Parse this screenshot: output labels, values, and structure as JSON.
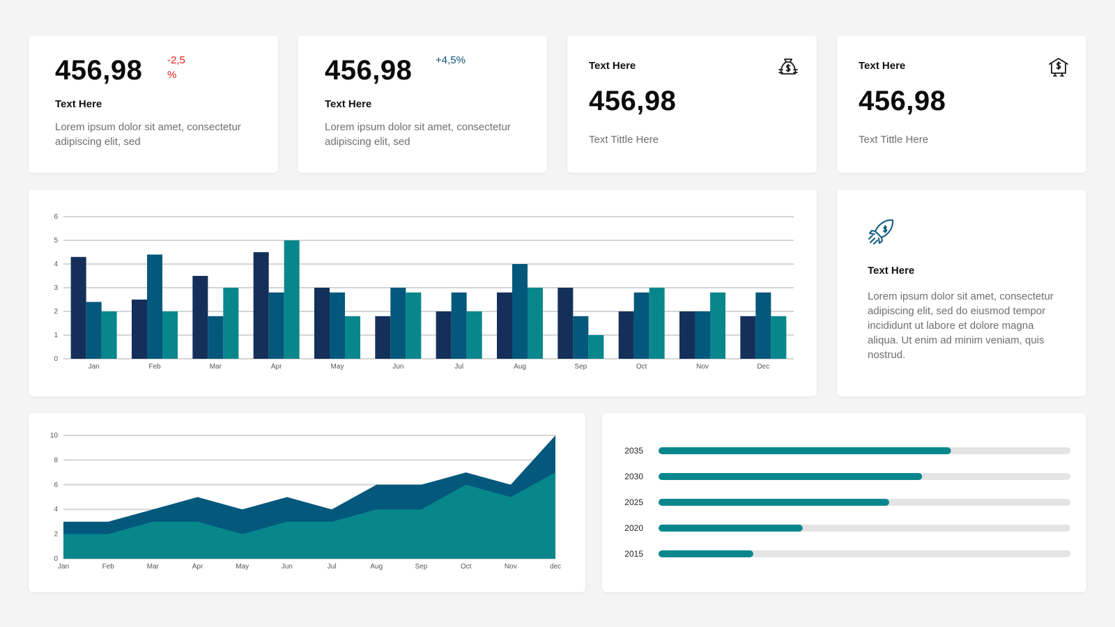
{
  "colors": {
    "navy": "#14305a",
    "blue": "#03587b",
    "teal": "#07878c",
    "negative": "#e8201a",
    "positive": "#0b4f7a",
    "track": "#e4e4e4"
  },
  "kpi_cards": [
    {
      "value": "456,98",
      "change": "-2,5 %",
      "change_color": "#e8201a",
      "title": "Text Here",
      "desc": "Lorem ipsum dolor sit amet, consectetur adipiscing elit, sed"
    },
    {
      "value": "456,98",
      "change": "+4,5%",
      "change_color": "#0b4f7a",
      "title": "Text Here",
      "desc": "Lorem ipsum dolor sit amet, consectetur adipiscing elit, sed"
    },
    {
      "title": "Text Here",
      "value": "456,98",
      "subtitle": "Text Tittle Here",
      "icon": "money-bag-icon"
    },
    {
      "title": "Text Here",
      "value": "456,98",
      "subtitle": "Text Tittle Here",
      "icon": "money-house-icon"
    }
  ],
  "info_card": {
    "icon": "money-rocket-icon",
    "title": "Text Here",
    "desc": "Lorem ipsum dolor sit amet, consectetur adipiscing elit, sed do eiusmod tempor incididunt ut labore et dolore magna aliqua. Ut enim ad minim veniam, quis nostrud."
  },
  "chart_data": [
    {
      "type": "bar",
      "categories": [
        "Jan",
        "Feb",
        "Mar",
        "Apr",
        "May",
        "Jun",
        "Jul",
        "Aug",
        "Sep",
        "Oct",
        "Nov",
        "Dec"
      ],
      "series": [
        {
          "values": [
            4.3,
            2.5,
            3.5,
            4.5,
            3,
            1.8,
            2,
            2.8,
            3,
            2,
            2,
            1.8
          ],
          "color": "#14305a"
        },
        {
          "values": [
            2.4,
            4.4,
            1.8,
            2.8,
            2.8,
            3,
            2.8,
            4,
            1.8,
            2.8,
            2,
            2.8
          ],
          "color": "#03587b"
        },
        {
          "values": [
            2,
            2,
            3,
            5,
            1.8,
            2.8,
            2,
            3,
            1,
            3,
            2.8,
            1.8
          ],
          "color": "#07878c"
        }
      ],
      "yticks": [
        0,
        1,
        2,
        3,
        4,
        5,
        6
      ],
      "ylim": [
        0,
        6
      ],
      "grid": true
    },
    {
      "type": "area",
      "categories": [
        "Jan",
        "Feb",
        "Mar",
        "Apr",
        "May",
        "Jun",
        "Jul",
        "Aug",
        "Sep",
        "Oct",
        "Nov",
        "dec"
      ],
      "series": [
        {
          "values": [
            3,
            3,
            4,
            5,
            4,
            5,
            4,
            6,
            6,
            7,
            6,
            10
          ],
          "color": "#03587b"
        },
        {
          "values": [
            2,
            2,
            3,
            3,
            2,
            3,
            3,
            4,
            4,
            6,
            5,
            7
          ],
          "color": "#07878c"
        }
      ],
      "yticks": [
        0,
        2,
        4,
        6,
        8,
        10
      ],
      "ylim": [
        0,
        10
      ],
      "grid": true
    },
    {
      "type": "bar",
      "orientation": "horizontal",
      "categories": [
        "2035",
        "2030",
        "2025",
        "2020",
        "2015"
      ],
      "values": [
        71,
        64,
        56,
        35,
        23
      ],
      "xlim": [
        0,
        100
      ],
      "bar_color": "#07878c",
      "track_color": "#e4e4e4"
    }
  ]
}
